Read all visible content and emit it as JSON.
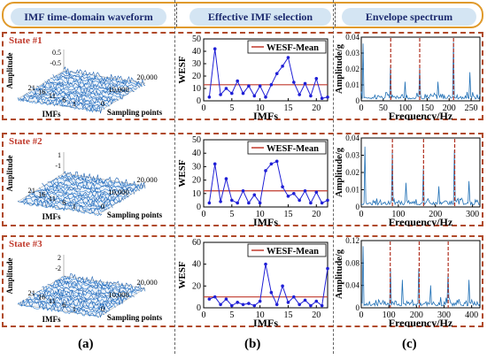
{
  "header": {
    "col_a": "IMF time-domain waveform",
    "col_b": "Effective IMF selection",
    "col_c": "Envelope spectrum"
  },
  "captions": {
    "a": "(a)",
    "b": "(b)",
    "c": "(c)"
  },
  "states": [
    {
      "label": "State #1",
      "waveform": {
        "z_axis_label": "Amplitude",
        "z_ticks": [
          "0.5",
          "-0.5"
        ],
        "imf_axis_label": "IMFs",
        "imf_ticks": [
          "21",
          "16",
          "11",
          "6",
          "1"
        ],
        "samples_axis_label": "Sampling points",
        "samples_ticks": [
          "20,000",
          "10,000",
          "0"
        ]
      }
    },
    {
      "label": "State #2",
      "waveform": {
        "z_axis_label": "Amplitude",
        "z_ticks": [
          "1",
          "-1"
        ],
        "imf_axis_label": "IMFs",
        "imf_ticks": [
          "21",
          "16",
          "11",
          "6",
          "1"
        ],
        "samples_axis_label": "Sampling points",
        "samples_ticks": [
          "20,000",
          "10,000",
          "0"
        ]
      }
    },
    {
      "label": "State #3",
      "waveform": {
        "z_axis_label": "Amplitude",
        "z_ticks": [
          "2",
          "-2"
        ],
        "imf_axis_label": "IMFs",
        "imf_ticks": [
          "21",
          "16",
          "11",
          "6",
          "1"
        ],
        "samples_axis_label": "Sampling points",
        "samples_ticks": [
          "20,000",
          "10,000",
          "0"
        ]
      }
    }
  ],
  "chart_data": [
    {
      "type": "line",
      "panel": "b",
      "state": 1,
      "xlabel": "IMFs",
      "ylabel": "WESF",
      "xlim": [
        0,
        22
      ],
      "ylim": [
        0,
        50
      ],
      "xticks": [
        0,
        5,
        10,
        15,
        20
      ],
      "yticks": [
        0,
        10,
        20,
        30,
        40,
        50
      ],
      "legend": "top-right",
      "series": [
        {
          "name": "WESF",
          "color": "#1f1fd6",
          "x": [
            1,
            2,
            3,
            4,
            5,
            6,
            7,
            8,
            9,
            10,
            11,
            12,
            13,
            14,
            15,
            16,
            17,
            18,
            19,
            20,
            21,
            22
          ],
          "y": [
            3,
            42,
            5,
            10,
            6,
            16,
            6,
            12,
            4,
            12,
            3,
            13,
            22,
            28,
            35,
            15,
            5,
            14,
            4,
            18,
            2,
            3
          ]
        },
        {
          "name": "WESF-Mean",
          "color": "#c0392b",
          "mean": 13
        }
      ]
    },
    {
      "type": "line",
      "panel": "b",
      "state": 2,
      "xlabel": "IMFs",
      "ylabel": "WESF",
      "xlim": [
        0,
        22
      ],
      "ylim": [
        0,
        50
      ],
      "xticks": [
        0,
        5,
        10,
        15,
        20
      ],
      "yticks": [
        0,
        10,
        20,
        30,
        40,
        50
      ],
      "legend": "top-right",
      "series": [
        {
          "name": "WESF",
          "color": "#1f1fd6",
          "x": [
            1,
            2,
            3,
            4,
            5,
            6,
            7,
            8,
            9,
            10,
            11,
            12,
            13,
            14,
            15,
            16,
            17,
            18,
            19,
            20,
            21,
            22
          ],
          "y": [
            3,
            32,
            4,
            21,
            5,
            3,
            12,
            3,
            9,
            3,
            27,
            32,
            34,
            15,
            8,
            10,
            5,
            12,
            3,
            11,
            3,
            5
          ]
        },
        {
          "name": "WESF-Mean",
          "color": "#c0392b",
          "mean": 12
        }
      ]
    },
    {
      "type": "line",
      "panel": "b",
      "state": 3,
      "xlabel": "IMFs",
      "ylabel": "WESF",
      "xlim": [
        0,
        22
      ],
      "ylim": [
        0,
        60
      ],
      "xticks": [
        0,
        5,
        10,
        15,
        20
      ],
      "yticks": [
        0,
        20,
        40,
        60
      ],
      "legend": "top-right",
      "series": [
        {
          "name": "WESF",
          "color": "#1f1fd6",
          "x": [
            1,
            2,
            3,
            4,
            5,
            6,
            7,
            8,
            9,
            10,
            11,
            12,
            13,
            14,
            15,
            16,
            17,
            18,
            19,
            20,
            21,
            22
          ],
          "y": [
            8,
            10,
            3,
            8,
            2,
            5,
            3,
            4,
            2,
            6,
            40,
            14,
            3,
            20,
            5,
            10,
            3,
            7,
            2,
            6,
            2,
            36
          ]
        },
        {
          "name": "WESF-Mean",
          "color": "#c0392b",
          "mean": 10
        }
      ]
    },
    {
      "type": "line",
      "panel": "c",
      "state": 1,
      "xlabel": "Frequency/Hz",
      "ylabel": "Amplitude/g",
      "xlim": [
        0,
        270
      ],
      "ylim": [
        0,
        0.04
      ],
      "xticks": [
        0,
        50,
        100,
        150,
        200,
        250
      ],
      "yticks": [
        0,
        0.01,
        0.02,
        0.03,
        0.04
      ],
      "markers": [
        67,
        133,
        210
      ],
      "series": [
        {
          "name": "Envelope",
          "color": "#1f6fb5",
          "peaks": [
            [
              5,
              0.036
            ],
            [
              67,
              0.022
            ],
            [
              133,
              0.021
            ],
            [
              210,
              0.037
            ],
            [
              248,
              0.018
            ],
            [
              100,
              0.012
            ],
            [
              175,
              0.012
            ]
          ]
        }
      ]
    },
    {
      "type": "line",
      "panel": "c",
      "state": 2,
      "xlabel": "Frequency/Hz",
      "ylabel": "Amplitude/g",
      "xlim": [
        0,
        320
      ],
      "ylim": [
        0,
        0.04
      ],
      "xticks": [
        0,
        100,
        200,
        300
      ],
      "yticks": [
        0,
        0.01,
        0.02,
        0.03,
        0.04
      ],
      "markers": [
        84,
        168,
        252
      ],
      "series": [
        {
          "name": "Envelope",
          "color": "#1f6fb5",
          "peaks": [
            [
              10,
              0.035
            ],
            [
              84,
              0.032
            ],
            [
              168,
              0.022
            ],
            [
              252,
              0.033
            ],
            [
              120,
              0.014
            ],
            [
              210,
              0.012
            ],
            [
              290,
              0.015
            ]
          ]
        }
      ]
    },
    {
      "type": "line",
      "panel": "c",
      "state": 3,
      "xlabel": "Frequency/Hz",
      "ylabel": "Amplitude/g",
      "xlim": [
        0,
        430
      ],
      "ylim": [
        0,
        0.12
      ],
      "xticks": [
        0,
        100,
        200,
        300,
        400
      ],
      "yticks": [
        0,
        0.04,
        0.08,
        0.12
      ],
      "markers": [
        105,
        210,
        315
      ],
      "series": [
        {
          "name": "Envelope",
          "color": "#1f6fb5",
          "peaks": [
            [
              5,
              0.11
            ],
            [
              105,
              0.07
            ],
            [
              210,
              0.07
            ],
            [
              315,
              0.06
            ],
            [
              150,
              0.05
            ],
            [
              250,
              0.04
            ],
            [
              390,
              0.05
            ]
          ]
        }
      ]
    }
  ]
}
